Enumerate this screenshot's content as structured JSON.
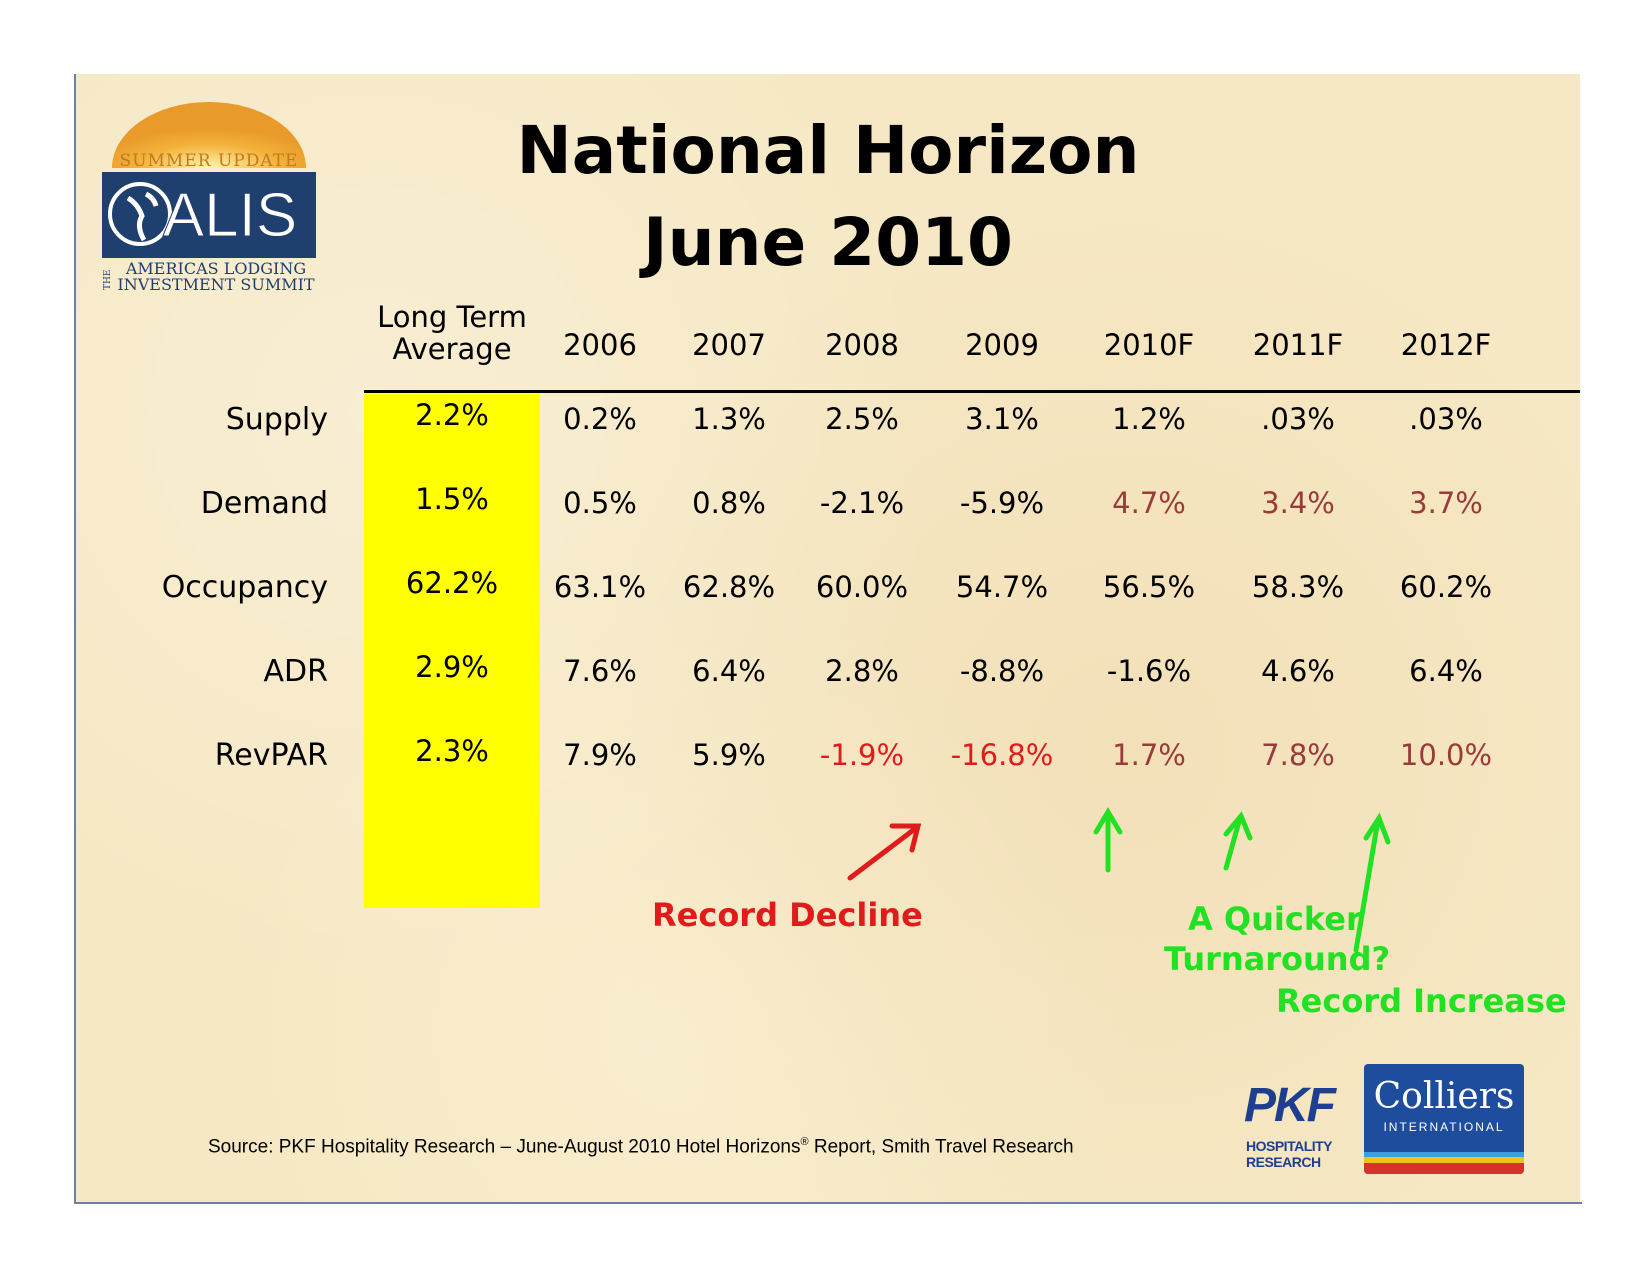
{
  "title": {
    "line1": "National Horizon",
    "line2": "June 2010"
  },
  "logo": {
    "top_text": "SUMMER UPDATE",
    "brand": "ALIS",
    "side_text": "THE",
    "line1": "AMERICAS LODGING",
    "line2": "INVESTMENT SUMMIT"
  },
  "table": {
    "headers": [
      "Long Term",
      "Average",
      "2006",
      "2007",
      "2008",
      "2009",
      "2010F",
      "2011F",
      "2012F"
    ],
    "rows": [
      {
        "label": "Supply",
        "values": [
          "2.2%",
          "0.2%",
          "1.3%",
          "2.5%",
          "3.1%",
          "1.2%",
          ".03%",
          ".03%"
        ]
      },
      {
        "label": "Demand",
        "values": [
          "1.5%",
          "0.5%",
          "0.8%",
          "-2.1%",
          "-5.9%",
          "4.7%",
          "3.4%",
          "3.7%"
        ]
      },
      {
        "label": "Occupancy",
        "values": [
          "62.2%",
          "63.1%",
          "62.8%",
          "60.0%",
          "54.7%",
          "56.5%",
          "58.3%",
          "60.2%"
        ]
      },
      {
        "label": "ADR",
        "values": [
          "2.9%",
          "7.6%",
          "6.4%",
          "2.8%",
          "-8.8%",
          "-1.6%",
          "4.6%",
          "6.4%"
        ]
      },
      {
        "label": "RevPAR",
        "values": [
          "2.3%",
          "7.9%",
          "5.9%",
          "-1.9%",
          "-16.8%",
          "1.7%",
          "7.8%",
          "10.0%"
        ]
      }
    ]
  },
  "annotations": {
    "record_decline": "Record Decline",
    "quicker_line1": "A Quicker",
    "quicker_line2": "Turnaround?",
    "record_increase": "Record Increase"
  },
  "source": {
    "prefix": "Source: PKF Hospitality Research – June-August 2010 Hotel Horizons",
    "reg": "®",
    "suffix": " Report,  Smith Travel Research"
  },
  "pkf_logo": {
    "letters": "PKF",
    "line1": "HOSPITALITY",
    "line2": "RESEARCH"
  },
  "colliers_logo": {
    "name": "Colliers",
    "sub": "INTERNATIONAL"
  },
  "colors": {
    "negative": "#e01b1b",
    "forecast": "#9a3a3a",
    "positive_annotation": "#22e022",
    "highlight": "#ffff00"
  }
}
